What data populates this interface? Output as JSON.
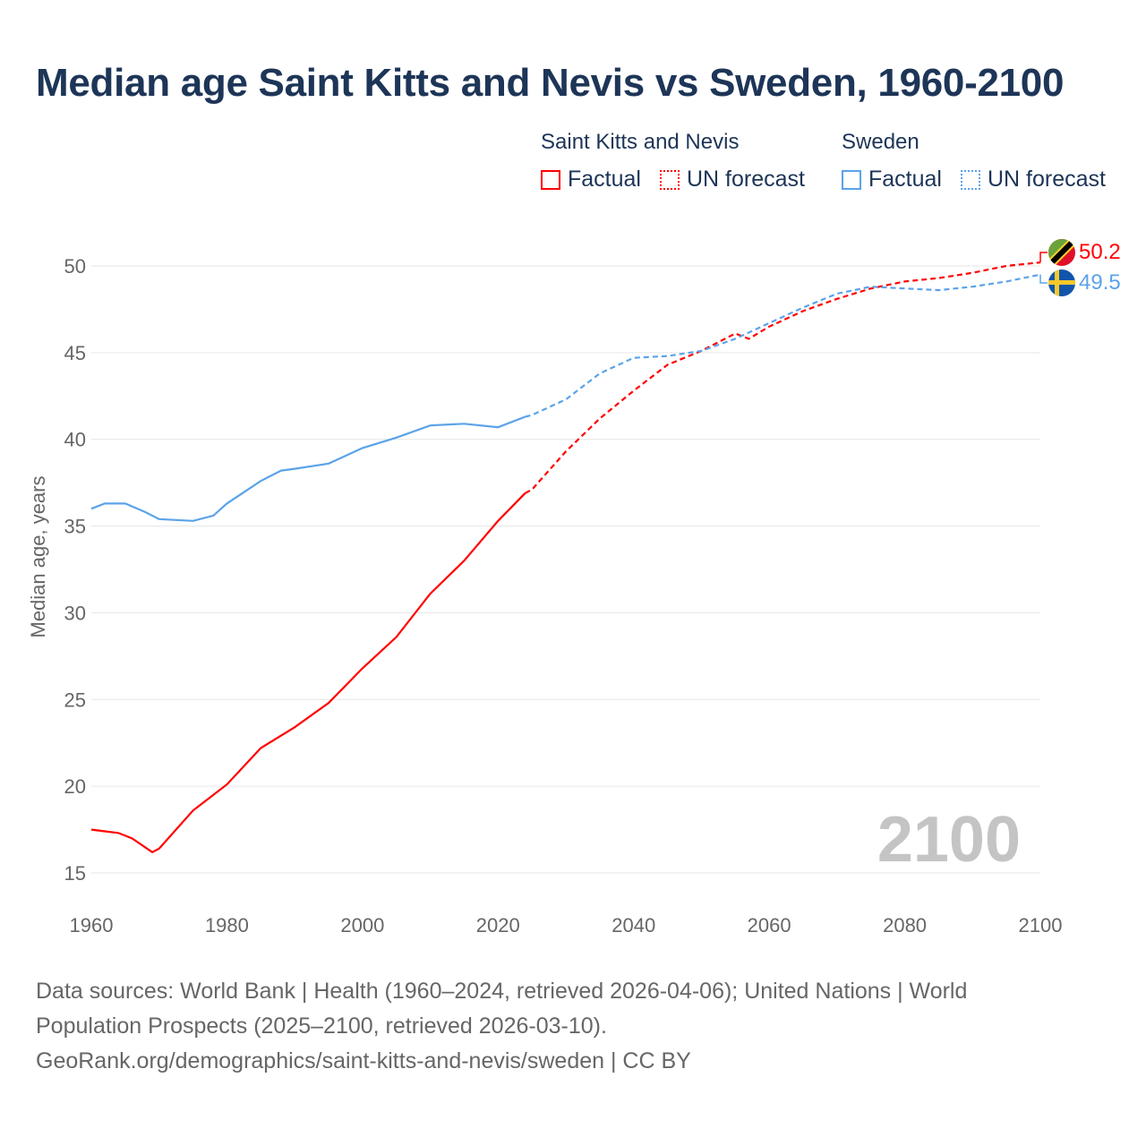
{
  "title": "Median age Saint Kitts and Nevis vs Sweden, 1960-2100",
  "legend": {
    "groups": [
      {
        "name": "Saint Kitts and Nevis",
        "factual": "Factual",
        "forecast": "UN forecast",
        "color": "#ff0000"
      },
      {
        "name": "Sweden",
        "factual": "Factual",
        "forecast": "UN forecast",
        "color": "#5ba3e8"
      }
    ]
  },
  "year_watermark": "2100",
  "footer": {
    "line1": "Data sources: World Bank | Health (1960–2024, retrieved 2026-04-06); United Nations | World",
    "line2": "Population Prospects (2025–2100, retrieved 2026-03-10).",
    "line3": "GeoRank.org/demographics/saint-kitts-and-nevis/sweden | CC BY"
  },
  "chart_data": {
    "type": "line",
    "title": "Median age Saint Kitts and Nevis vs Sweden, 1960-2100",
    "xlabel": "",
    "ylabel": "Median age, years",
    "xlim": [
      1960,
      2100
    ],
    "ylim": [
      15,
      52
    ],
    "xticks": [
      1960,
      1980,
      2000,
      2020,
      2040,
      2060,
      2080,
      2100
    ],
    "yticks": [
      15,
      20,
      25,
      30,
      35,
      40,
      45,
      50
    ],
    "grid": true,
    "forecast_start": 2024,
    "series": [
      {
        "name": "Saint Kitts and Nevis",
        "color": "#ff0000",
        "end_label": "50.2",
        "x": [
          1960,
          1962,
          1964,
          1966,
          1969,
          1970,
          1975,
          1980,
          1985,
          1990,
          1995,
          2000,
          2005,
          2010,
          2015,
          2020,
          2024,
          2025,
          2030,
          2035,
          2040,
          2045,
          2050,
          2055,
          2057,
          2060,
          2065,
          2070,
          2075,
          2080,
          2085,
          2090,
          2095,
          2100
        ],
        "y": [
          17.5,
          17.4,
          17.3,
          17.0,
          16.2,
          16.4,
          18.6,
          20.1,
          22.2,
          23.4,
          24.8,
          26.8,
          28.6,
          31.1,
          33.0,
          35.3,
          36.9,
          37.1,
          39.3,
          41.2,
          42.8,
          44.3,
          45.1,
          46.1,
          45.8,
          46.5,
          47.4,
          48.1,
          48.7,
          49.1,
          49.3,
          49.6,
          50.0,
          50.2
        ]
      },
      {
        "name": "Sweden",
        "color": "#5ba3e8",
        "end_label": "49.5",
        "x": [
          1960,
          1962,
          1965,
          1968,
          1970,
          1975,
          1978,
          1980,
          1985,
          1988,
          1990,
          1995,
          2000,
          2005,
          2010,
          2015,
          2020,
          2024,
          2025,
          2030,
          2035,
          2040,
          2045,
          2050,
          2055,
          2060,
          2065,
          2070,
          2075,
          2080,
          2085,
          2090,
          2095,
          2100
        ],
        "y": [
          36.0,
          36.3,
          36.3,
          35.8,
          35.4,
          35.3,
          35.6,
          36.3,
          37.6,
          38.2,
          38.3,
          38.6,
          39.5,
          40.1,
          40.8,
          40.9,
          40.7,
          41.3,
          41.4,
          42.3,
          43.8,
          44.7,
          44.8,
          45.1,
          45.8,
          46.7,
          47.6,
          48.4,
          48.8,
          48.7,
          48.6,
          48.8,
          49.1,
          49.5
        ]
      }
    ]
  }
}
